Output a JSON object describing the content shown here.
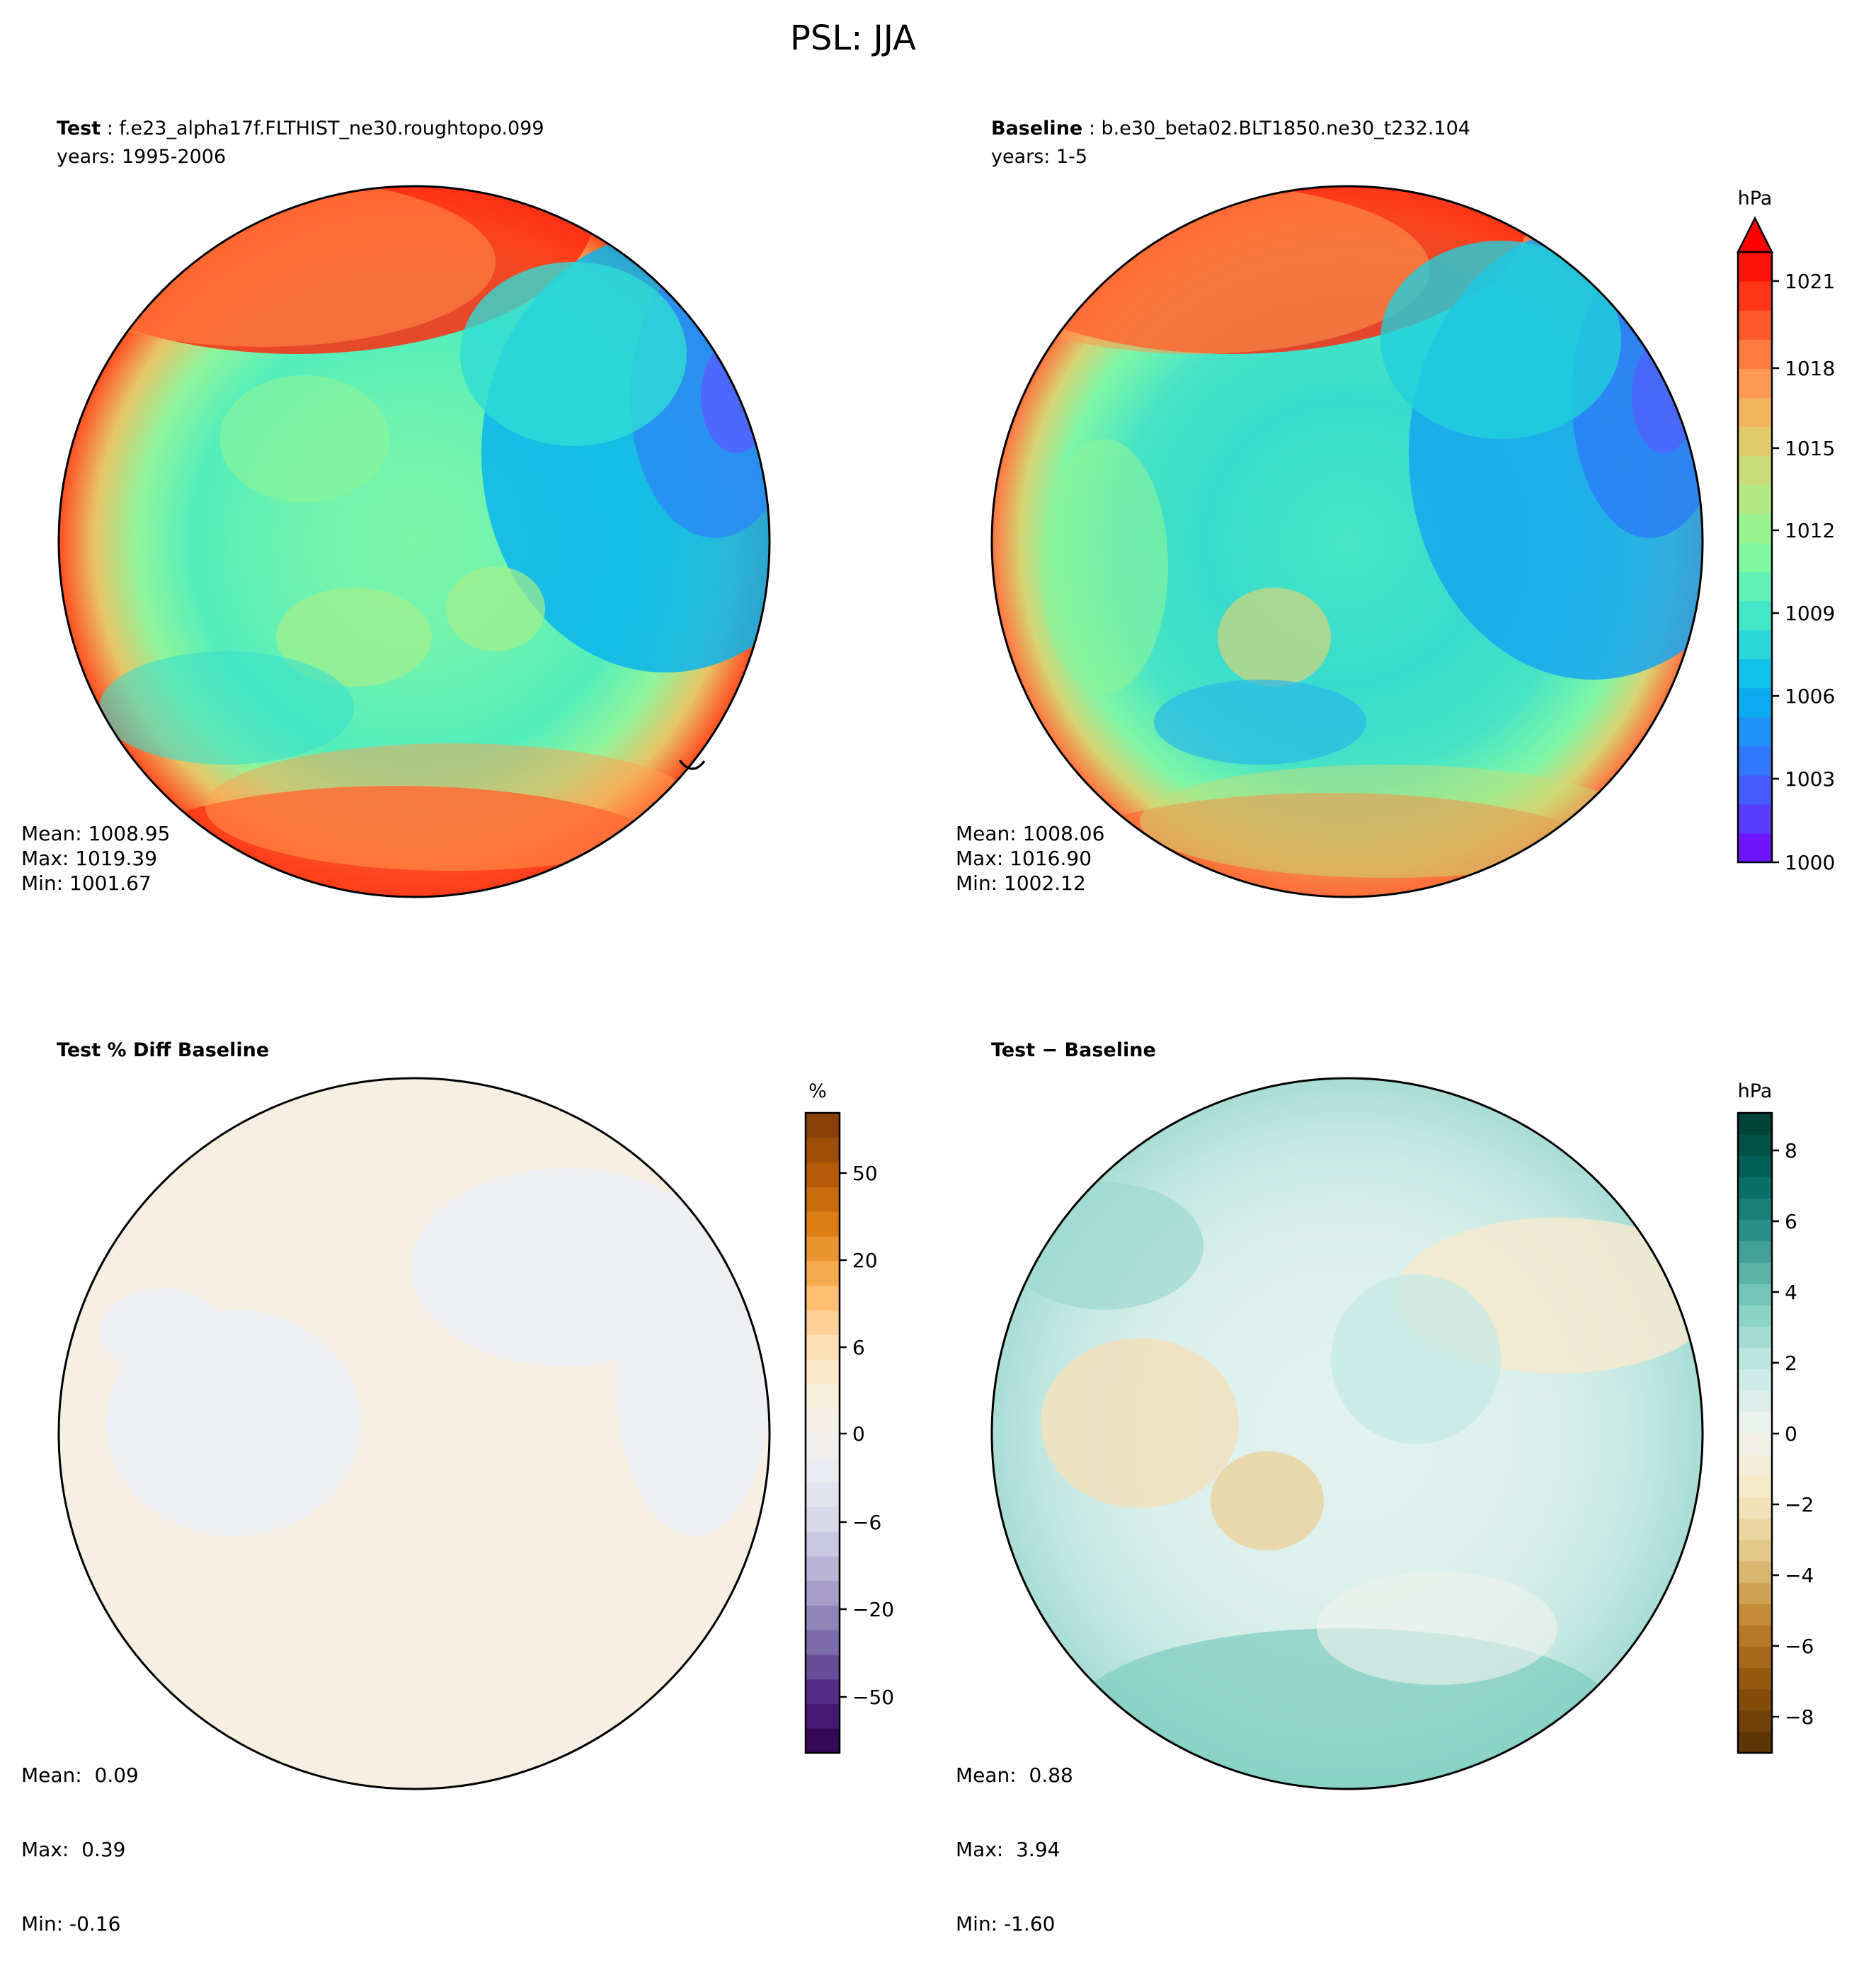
{
  "figure": {
    "title": "PSL: JJA"
  },
  "panels": [
    {
      "id": "test",
      "title_bold": "Test",
      "title_rest": " : f.e23_alpha17f.FLTHIST_ne30.roughtopo.099",
      "subtitle": "years: 1995-2006",
      "stats": [
        "Mean: 1008.95",
        "Max: 1019.39",
        "Min: 1001.67"
      ]
    },
    {
      "id": "baseline",
      "title_bold": "Baseline",
      "title_rest": " : b.e30_beta02.BLT1850.ne30_t232.104",
      "subtitle": "years: 1-5",
      "stats": [
        "Mean: 1008.06",
        "Max: 1016.90",
        "Min: 1002.12"
      ]
    },
    {
      "id": "pctdiff",
      "title_bold": "Test % Diff Baseline",
      "title_rest": "",
      "subtitle": "",
      "stats": [
        "Mean:  0.09",
        "Max:  0.39",
        "Min: -0.16"
      ]
    },
    {
      "id": "diff",
      "title_bold": "Test − Baseline",
      "title_rest": "",
      "subtitle": "",
      "stats": [
        "Mean:  0.88",
        "Max:  3.94",
        "Min: -1.60"
      ]
    }
  ],
  "colorbars": [
    {
      "id": "psl",
      "unit": "hPa",
      "ticks": [
        "1021",
        "1018",
        "1015",
        "1012",
        "1009",
        "1006",
        "1003",
        "1000"
      ]
    },
    {
      "id": "pct",
      "unit": "%",
      "ticks": [
        "50",
        "20",
        "6",
        "0",
        "−6",
        "−20",
        "−50"
      ]
    },
    {
      "id": "abs",
      "unit": "hPa",
      "ticks": [
        "8",
        "6",
        "4",
        "2",
        "0",
        "−2",
        "−4",
        "−6",
        "−8"
      ]
    }
  ],
  "colors": {
    "rainbow_scale": [
      "#7a00ff",
      "#5a3cff",
      "#3a6cff",
      "#1f90f8",
      "#02b8ec",
      "#2bd6d8",
      "#50eec0",
      "#80f8a0",
      "#a6f088",
      "#cadc78",
      "#ecc264",
      "#ff9850",
      "#ff6c36",
      "#ff3618",
      "#ff0000"
    ],
    "purple_orange_scale": [
      "#2d004b",
      "#542788",
      "#8073ac",
      "#b2abd2",
      "#d8daeb",
      "#eeeff3",
      "#f7f0e2",
      "#fee0b6",
      "#fdb863",
      "#e08214",
      "#b35806",
      "#7f3b08"
    ],
    "brbg_scale": [
      "#543005",
      "#8c510a",
      "#bf812d",
      "#dfc27d",
      "#f6e8c3",
      "#f2f2ee",
      "#c7eae5",
      "#80cdc1",
      "#35978f",
      "#01665e",
      "#003c30"
    ],
    "coastline": "#000000",
    "gridline": "#808080"
  }
}
